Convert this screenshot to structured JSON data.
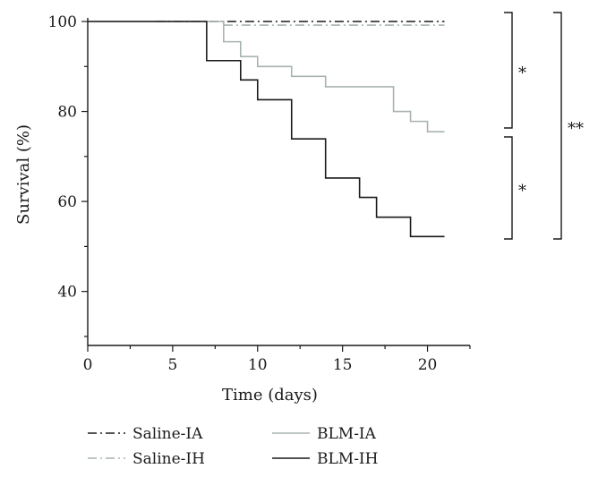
{
  "chart_data": {
    "type": "line",
    "step": true,
    "xlabel": "Time (days)",
    "ylabel": "Survival (%)",
    "xlim": [
      0,
      22.5
    ],
    "ylim": [
      28,
      100
    ],
    "xticks": [
      0,
      5,
      10,
      15,
      20
    ],
    "yticks": [
      40,
      60,
      80,
      100
    ],
    "grid": false,
    "legend_position": "bottom",
    "series": [
      {
        "name": "Saline-IA",
        "color": "#1a1a1a",
        "dash": "dashdot",
        "x": [
          4,
          21
        ],
        "y": [
          100,
          100
        ]
      },
      {
        "name": "Saline-IH",
        "color": "#a9b3ae",
        "dash": "dashdot",
        "x": [
          4,
          8,
          21
        ],
        "y": [
          100,
          99.2,
          99.2
        ]
      },
      {
        "name": "BLM-IA",
        "color": "#a9b3ae",
        "dash": "solid",
        "x": [
          0,
          8,
          9,
          10,
          12,
          14,
          18,
          19,
          20,
          21
        ],
        "y": [
          100,
          95.5,
          92.2,
          90,
          87.8,
          85.5,
          80,
          77.8,
          75.5,
          75.5
        ]
      },
      {
        "name": "BLM-IH",
        "color": "#1a1a1a",
        "dash": "solid",
        "x": [
          0,
          7,
          9,
          10,
          12,
          14,
          16,
          17,
          19,
          21
        ],
        "y": [
          100,
          91.3,
          87,
          82.6,
          73.9,
          65.2,
          60.9,
          56.5,
          52.2,
          52.2
        ]
      }
    ],
    "annotations": [
      {
        "label": "*",
        "from": "Saline-IA",
        "to": "BLM-IA",
        "y_range": [
          100,
          75.5
        ]
      },
      {
        "label": "*",
        "from": "BLM-IA",
        "to": "BLM-IH",
        "y_range": [
          74.5,
          52.2
        ]
      },
      {
        "label": "**",
        "from": "Saline-IA",
        "to": "BLM-IH",
        "y_range": [
          100,
          52.2
        ]
      }
    ]
  }
}
